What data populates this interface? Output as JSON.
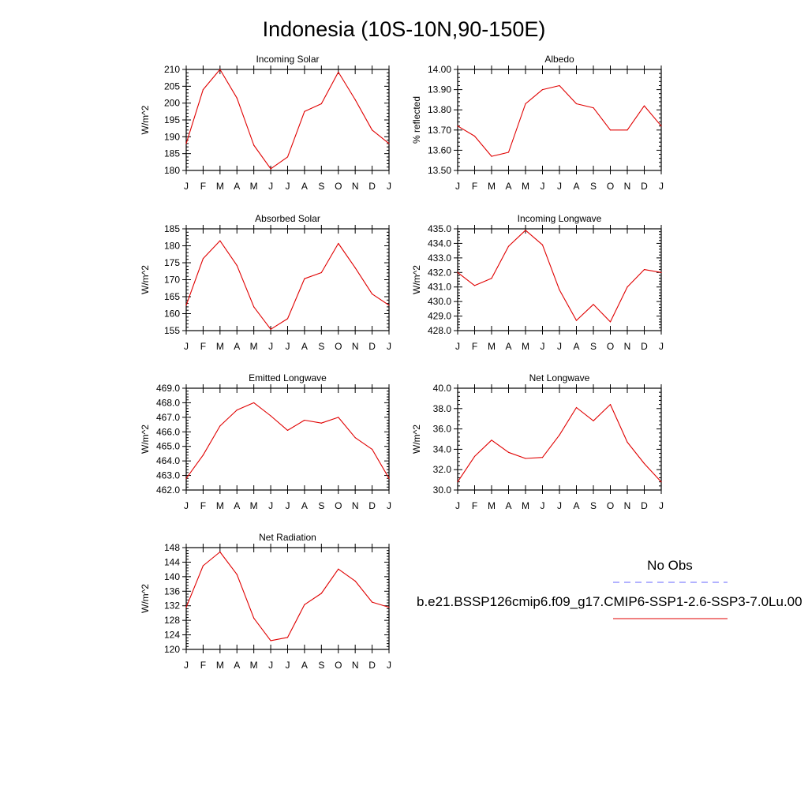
{
  "figure": {
    "title": "Indonesia (10S-10N,90-150E)",
    "legend": {
      "obs_label": "No Obs",
      "model_label": "b.e21.BSSP126cmip6.f09_g17.CMIP6-SSP1-2.6-SSP3-7.0Lu.00",
      "obs_color": "#6666ff",
      "model_color": "#e00000"
    }
  },
  "chart_data": [
    {
      "type": "line",
      "title": "Incoming Solar",
      "ylabel": "W/m^2",
      "categories": [
        "J",
        "F",
        "M",
        "A",
        "M",
        "J",
        "J",
        "A",
        "S",
        "O",
        "N",
        "D",
        "J"
      ],
      "ylim": [
        180,
        210
      ],
      "yticks": [
        "210",
        "205",
        "200",
        "195",
        "190",
        "185",
        "180"
      ],
      "series": [
        {
          "values": [
            188.0,
            204.0,
            210.0,
            201.5,
            187.5,
            180.5,
            184.0,
            197.5,
            199.8,
            209.2,
            201.0,
            192.0,
            188.0
          ]
        }
      ]
    },
    {
      "type": "line",
      "title": "Albedo",
      "ylabel": "% reflected",
      "categories": [
        "J",
        "F",
        "M",
        "A",
        "M",
        "J",
        "J",
        "A",
        "S",
        "O",
        "N",
        "D",
        "J"
      ],
      "ylim": [
        13.5,
        14.0
      ],
      "yticks": [
        "14.00",
        "13.90",
        "13.80",
        "13.70",
        "13.60",
        "13.50"
      ],
      "series": [
        {
          "values": [
            13.72,
            13.67,
            13.57,
            13.59,
            13.83,
            13.9,
            13.92,
            13.83,
            13.81,
            13.7,
            13.7,
            13.82,
            13.72
          ]
        }
      ]
    },
    {
      "type": "line",
      "title": "Absorbed Solar",
      "ylabel": "W/m^2",
      "categories": [
        "J",
        "F",
        "M",
        "A",
        "M",
        "J",
        "J",
        "A",
        "S",
        "O",
        "N",
        "D",
        "J"
      ],
      "ylim": [
        155,
        185
      ],
      "yticks": [
        "185",
        "180",
        "175",
        "170",
        "165",
        "160",
        "155"
      ],
      "series": [
        {
          "values": [
            162.5,
            176.2,
            181.5,
            174.2,
            162.0,
            155.4,
            158.5,
            170.3,
            172.1,
            180.7,
            173.5,
            165.8,
            162.5
          ]
        }
      ]
    },
    {
      "type": "line",
      "title": "Incoming Longwave",
      "ylabel": "W/m^2",
      "categories": [
        "J",
        "F",
        "M",
        "A",
        "M",
        "J",
        "J",
        "A",
        "S",
        "O",
        "N",
        "D",
        "J"
      ],
      "ylim": [
        428.0,
        435.0
      ],
      "yticks": [
        "435.0",
        "434.0",
        "433.0",
        "432.0",
        "431.0",
        "430.0",
        "429.0",
        "428.0"
      ],
      "series": [
        {
          "values": [
            432.0,
            431.1,
            431.6,
            433.8,
            434.9,
            433.9,
            430.8,
            428.7,
            429.8,
            428.6,
            431.0,
            432.2,
            432.0
          ]
        }
      ]
    },
    {
      "type": "line",
      "title": "Emitted Longwave",
      "ylabel": "W/m^2",
      "categories": [
        "J",
        "F",
        "M",
        "A",
        "M",
        "J",
        "J",
        "A",
        "S",
        "O",
        "N",
        "D",
        "J"
      ],
      "ylim": [
        462.0,
        469.0
      ],
      "yticks": [
        "469.0",
        "468.0",
        "467.0",
        "466.0",
        "465.0",
        "464.0",
        "463.0",
        "462.0"
      ],
      "series": [
        {
          "values": [
            462.8,
            464.4,
            466.4,
            467.5,
            468.0,
            467.1,
            466.1,
            466.8,
            466.6,
            467.0,
            465.6,
            464.8,
            462.8
          ]
        }
      ]
    },
    {
      "type": "line",
      "title": "Net Longwave",
      "ylabel": "W/m^2",
      "categories": [
        "J",
        "F",
        "M",
        "A",
        "M",
        "J",
        "J",
        "A",
        "S",
        "O",
        "N",
        "D",
        "J"
      ],
      "ylim": [
        30.0,
        40.0
      ],
      "yticks": [
        "40.0",
        "38.0",
        "36.0",
        "34.0",
        "32.0",
        "30.0"
      ],
      "series": [
        {
          "values": [
            30.8,
            33.3,
            34.9,
            33.7,
            33.1,
            33.2,
            35.4,
            38.1,
            36.8,
            38.4,
            34.7,
            32.6,
            30.8
          ]
        }
      ]
    },
    {
      "type": "line",
      "title": "Net Radiation",
      "ylabel": "W/m^2",
      "categories": [
        "J",
        "F",
        "M",
        "A",
        "M",
        "J",
        "J",
        "A",
        "S",
        "O",
        "N",
        "D",
        "J"
      ],
      "ylim": [
        120,
        148
      ],
      "yticks": [
        "148",
        "144",
        "140",
        "136",
        "132",
        "128",
        "124",
        "120"
      ],
      "series": [
        {
          "values": [
            131.6,
            143.0,
            146.8,
            140.6,
            128.6,
            122.4,
            123.3,
            132.3,
            135.4,
            142.1,
            138.8,
            133.0,
            131.6
          ]
        }
      ]
    }
  ]
}
